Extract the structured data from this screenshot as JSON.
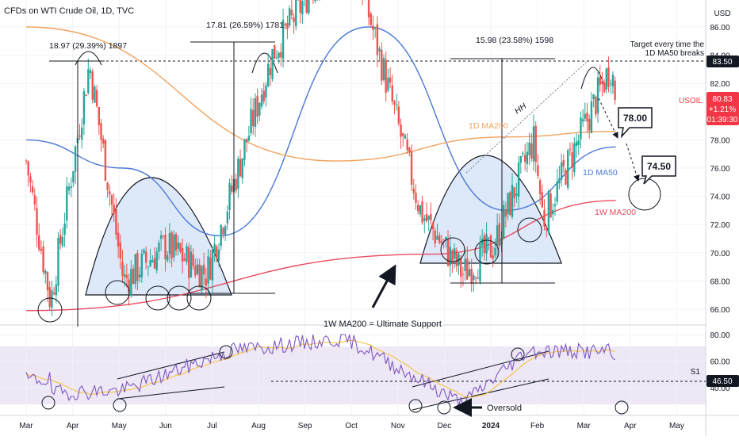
{
  "header": {
    "title": "CFDs on WTI Crude Oil, 1D, TVC",
    "currency": "USD"
  },
  "colors": {
    "up": "#26a69a",
    "down": "#ef5350",
    "ma50": "#4a78d6",
    "ma200_1d": "#f0a35e",
    "ma200_1w": "#e84a5f",
    "rsi": "#7e57c2",
    "rsi_ma": "#f5c342",
    "rsi_band": "#ede7f6",
    "arc_fill": "#dde8f8",
    "price_tag": "#f23645",
    "price_level_tag": "#131722"
  },
  "price_axis": {
    "ticks": [
      "86.00",
      "84.00",
      "82.00",
      "78.00",
      "76.00",
      "74.00",
      "72.00",
      "70.00",
      "68.00",
      "66.00"
    ],
    "tick_values": [
      86,
      84,
      82,
      78,
      76,
      74,
      72,
      70,
      68,
      66
    ],
    "level_tag": "83.50",
    "current_price": "80.83",
    "change": "+1.21%",
    "countdown": "01:39:30",
    "symbol": "USOIL"
  },
  "rsi_axis": {
    "ticks": [
      "80.00",
      "60.00",
      "40.00"
    ],
    "tick_values": [
      80,
      60,
      40
    ],
    "level_tag": "46.50"
  },
  "time_axis": [
    "Mar",
    "Apr",
    "May",
    "Jun",
    "Jul",
    "Aug",
    "Sep",
    "Oct",
    "Nov",
    "Dec",
    "2024",
    "Feb",
    "Mar",
    "Apr",
    "May"
  ],
  "annotations": {
    "measure_1": "18.97 (29.39%) 1897",
    "measure_2": "17.81 (26.59%) 1781",
    "measure_3": "15.98 (23.58%) 1598",
    "target_line1": "Target every time the",
    "target_line2": "1D MA50 breaks",
    "hh": "HH",
    "ma200_1d_label": "1D MA200",
    "ma50_1d_label": "1D MA50",
    "ma200_1w_label": "1W MA200",
    "ultimate_support": "1W MA200 = Ultimate Support",
    "target_78": "78.00",
    "target_745": "74.50",
    "s1": "S1",
    "oversold": "Oversold"
  },
  "chart_data": {
    "type": "candlestick",
    "title": "CFDs on WTI Crude Oil, 1D, TVC",
    "x_range": [
      "2023-03",
      "2024-05"
    ],
    "y_range": [
      64.5,
      88
    ],
    "key_levels": {
      "resistance": 83.5,
      "rsi_support": 46.5
    },
    "price_path_approx": [
      {
        "date": "2023-03",
        "close": 76.5
      },
      {
        "date": "2023-03-17",
        "close": 66.5
      },
      {
        "date": "2023-04-12",
        "close": 83.4
      },
      {
        "date": "2023-05-04",
        "close": 68.0
      },
      {
        "date": "2023-06",
        "close": 70.5
      },
      {
        "date": "2023-06-28",
        "close": 68.5
      },
      {
        "date": "2023-08-10",
        "close": 84.0
      },
      {
        "date": "2023-09-28",
        "close": 93.0
      },
      {
        "date": "2023-11-16",
        "close": 72.9
      },
      {
        "date": "2023-12-13",
        "close": 68.5
      },
      {
        "date": "2024-01-03",
        "close": 70.5
      },
      {
        "date": "2024-01-29",
        "close": 78.0
      },
      {
        "date": "2024-02-05",
        "close": 72.3
      },
      {
        "date": "2024-03-19",
        "close": 83.3
      },
      {
        "date": "2024-03-22",
        "close": 80.83
      }
    ],
    "series": [
      {
        "name": "1D MA50",
        "approx": [
          {
            "date": "2023-03",
            "value": 78.0
          },
          {
            "date": "2023-05-04",
            "value": 76.0
          },
          {
            "date": "2023-07-06",
            "value": 71.2
          },
          {
            "date": "2023-10-12",
            "value": 86.0
          },
          {
            "date": "2024-01-11",
            "value": 73.0
          },
          {
            "date": "2024-03-22",
            "value": 77.5
          }
        ]
      },
      {
        "name": "1D MA200",
        "approx": [
          {
            "date": "2023-03",
            "value": 86.0
          },
          {
            "date": "2023-09-21",
            "value": 76.5
          },
          {
            "date": "2024-01-11",
            "value": 78.2
          },
          {
            "date": "2024-03-22",
            "value": 78.6
          }
        ]
      },
      {
        "name": "1W MA200",
        "approx": [
          {
            "date": "2023-03",
            "value": 65.9
          },
          {
            "date": "2023-11-23",
            "value": 69.9
          },
          {
            "date": "2024-03-22",
            "value": 73.7
          }
        ]
      }
    ],
    "rsi": {
      "range": [
        30,
        82
      ],
      "approx": [
        {
          "date": "2023-03-17",
          "value": 36
        },
        {
          "date": "2023-05-04",
          "value": 38
        },
        {
          "date": "2023-07-13",
          "value": 68
        },
        {
          "date": "2023-09-28",
          "value": 77
        },
        {
          "date": "2023-12-13",
          "value": 28
        },
        {
          "date": "2024-01-25",
          "value": 68
        },
        {
          "date": "2024-03-19",
          "value": 67
        }
      ]
    }
  }
}
